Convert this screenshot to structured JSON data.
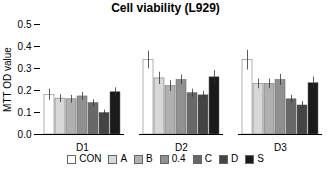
{
  "chart_data": {
    "type": "bar",
    "title": "Cell viability (L929)",
    "ylabel": "MTT OD value",
    "categories": [
      "D1",
      "D2",
      "D3"
    ],
    "series": [
      {
        "name": "CON",
        "color": "#ffffff",
        "values": [
          0.18,
          0.338,
          0.338
        ],
        "errors": [
          0.025,
          0.04,
          0.045
        ]
      },
      {
        "name": "A",
        "color": "#d8d8d8",
        "values": [
          0.163,
          0.255,
          0.23
        ],
        "errors": [
          0.018,
          0.028,
          0.022
        ]
      },
      {
        "name": "B",
        "color": "#b0b0b0",
        "values": [
          0.16,
          0.22,
          0.23
        ],
        "errors": [
          0.018,
          0.025,
          0.022
        ]
      },
      {
        "name": "0.4",
        "color": "#909090",
        "values": [
          0.173,
          0.248,
          0.248
        ],
        "errors": [
          0.018,
          0.022,
          0.025
        ]
      },
      {
        "name": "C",
        "color": "#686868",
        "values": [
          0.143,
          0.188,
          0.16
        ],
        "errors": [
          0.015,
          0.018,
          0.018
        ]
      },
      {
        "name": "D",
        "color": "#444444",
        "values": [
          0.098,
          0.178,
          0.132
        ],
        "errors": [
          0.013,
          0.018,
          0.018
        ]
      },
      {
        "name": "S",
        "color": "#1a1a1a",
        "values": [
          0.192,
          0.26,
          0.233
        ],
        "errors": [
          0.02,
          0.03,
          0.028
        ]
      }
    ],
    "ylim": [
      0,
      0.5
    ],
    "yticks": [
      {
        "value": 0,
        "label": "0.0"
      },
      0.1,
      0.2,
      0.3,
      0.4,
      0.5
    ],
    "grid": false,
    "legend": "bottom"
  }
}
